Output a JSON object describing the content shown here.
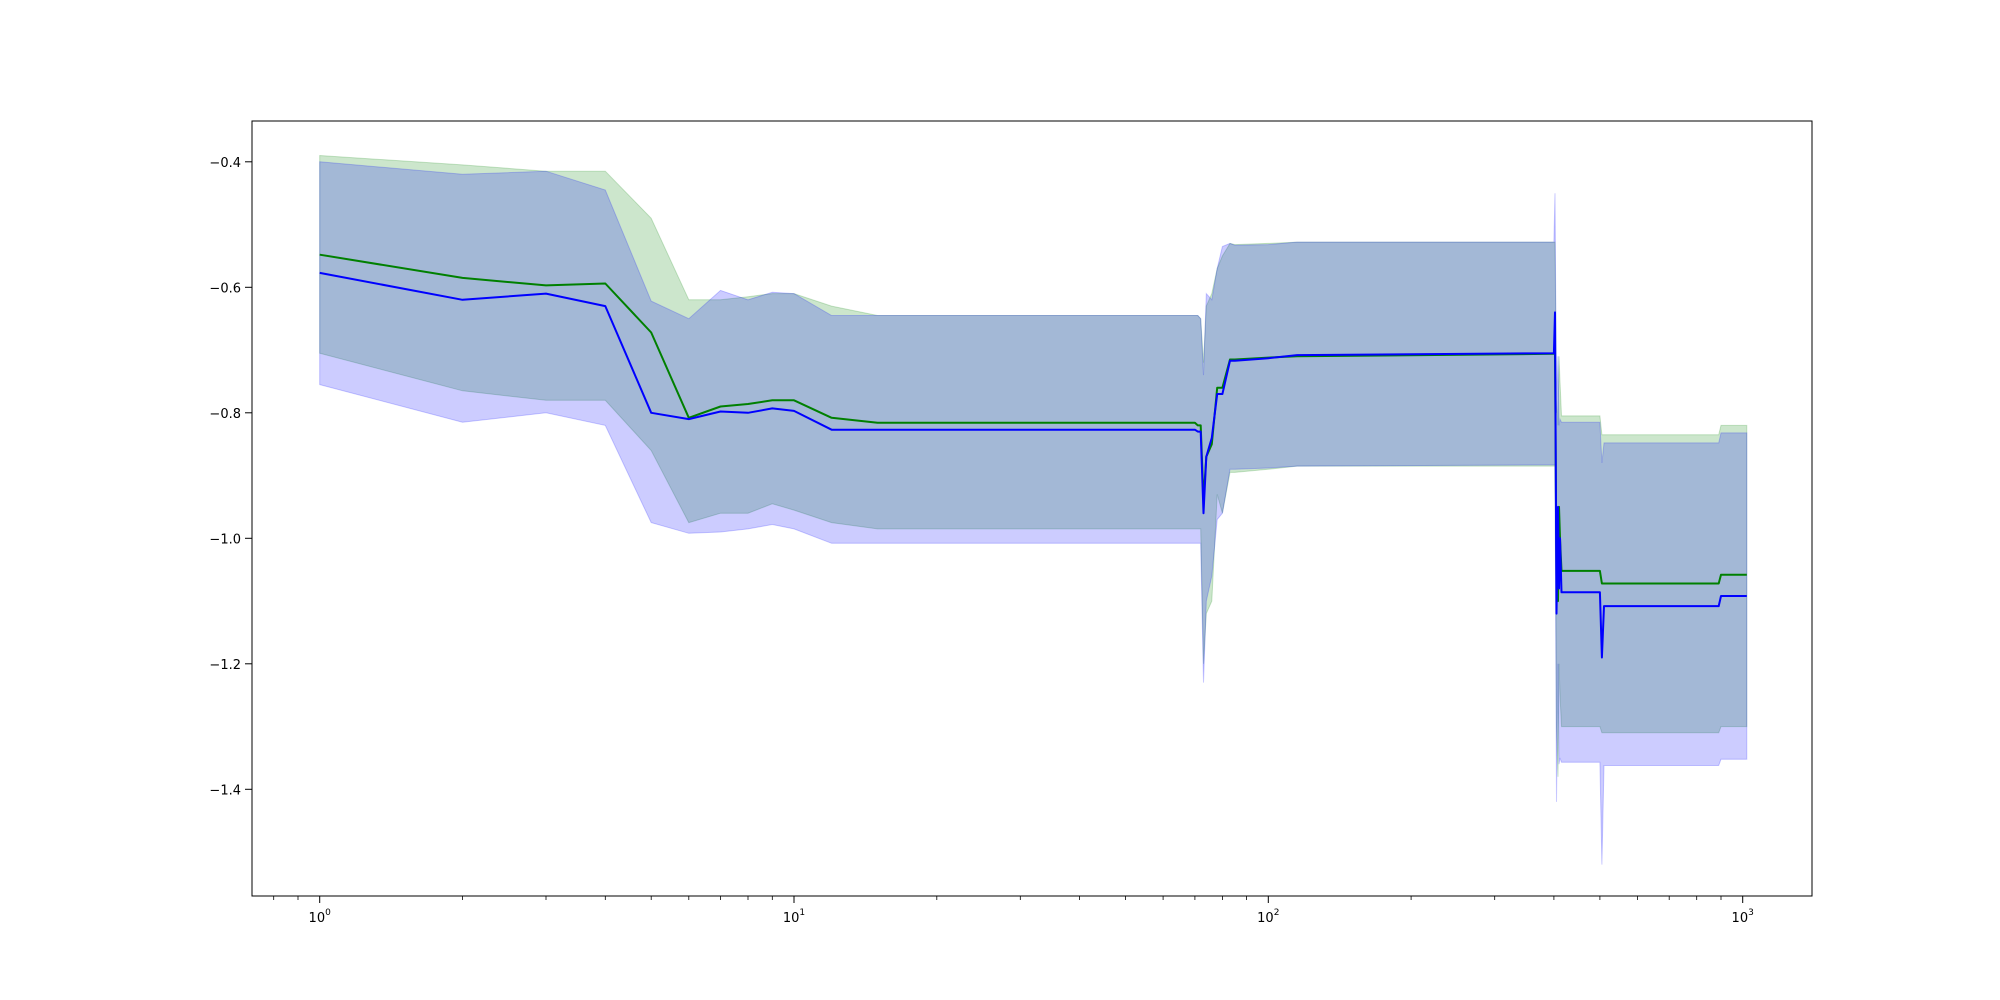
{
  "chart_data": {
    "type": "line",
    "title": "",
    "xlabel": "",
    "ylabel": "",
    "xscale": "log",
    "xlim": [
      0.72,
      1400
    ],
    "ylim": [
      -1.57,
      -0.335
    ],
    "grid": false,
    "x_ticks": [
      {
        "value": 1,
        "base": "10",
        "exp": "0"
      },
      {
        "value": 10,
        "base": "10",
        "exp": "1"
      },
      {
        "value": 100,
        "base": "10",
        "exp": "2"
      },
      {
        "value": 1000,
        "base": "10",
        "exp": "3"
      }
    ],
    "y_ticks": [
      {
        "value": -0.4,
        "label": "−0.4"
      },
      {
        "value": -0.6,
        "label": "−0.6"
      },
      {
        "value": -0.8,
        "label": "−0.8"
      },
      {
        "value": -1.0,
        "label": "−1.0"
      },
      {
        "value": -1.2,
        "label": "−1.2"
      },
      {
        "value": -1.4,
        "label": "−1.4"
      }
    ],
    "series": [
      {
        "color": "#008000",
        "band_color": "#008000",
        "x": [
          1,
          2,
          3,
          4,
          5,
          6,
          7,
          8,
          9,
          10,
          12,
          15,
          70,
          71,
          72,
          73,
          74,
          76,
          78,
          80,
          83,
          85,
          100,
          115,
          400,
          402,
          405,
          408,
          410,
          412,
          415,
          500,
          505,
          510,
          600,
          890,
          900,
          1020
        ],
        "y": [
          -0.548,
          -0.585,
          -0.597,
          -0.594,
          -0.672,
          -0.808,
          -0.79,
          -0.786,
          -0.78,
          -0.78,
          -0.808,
          -0.816,
          -0.816,
          -0.82,
          -0.82,
          -0.94,
          -0.87,
          -0.85,
          -0.76,
          -0.76,
          -0.715,
          -0.715,
          -0.712,
          -0.71,
          -0.706,
          -0.705,
          -1.06,
          -1.1,
          -0.95,
          -1.0,
          -1.052,
          -1.052,
          -1.072,
          -1.072,
          -1.072,
          -1.072,
          -1.058,
          -1.058
        ],
        "lower": [
          -0.705,
          -0.765,
          -0.78,
          -0.78,
          -0.86,
          -0.975,
          -0.96,
          -0.96,
          -0.945,
          -0.955,
          -0.975,
          -0.985,
          -0.985,
          -0.985,
          -0.985,
          -1.2,
          -1.12,
          -1.1,
          -0.93,
          -0.96,
          -0.895,
          -0.895,
          -0.89,
          -0.885,
          -0.885,
          -0.885,
          -1.3,
          -1.38,
          -1.2,
          -1.25,
          -1.3,
          -1.3,
          -1.31,
          -1.31,
          -1.31,
          -1.31,
          -1.3,
          -1.3
        ],
        "upper": [
          -0.39,
          -0.405,
          -0.415,
          -0.415,
          -0.49,
          -0.62,
          -0.62,
          -0.615,
          -0.61,
          -0.61,
          -0.63,
          -0.645,
          -0.645,
          -0.645,
          -0.65,
          -0.72,
          -0.63,
          -0.61,
          -0.57,
          -0.55,
          -0.53,
          -0.532,
          -0.53,
          -0.528,
          -0.528,
          -0.528,
          -0.78,
          -0.82,
          -0.71,
          -0.75,
          -0.805,
          -0.805,
          -0.835,
          -0.835,
          -0.835,
          -0.835,
          -0.82,
          -0.82
        ]
      },
      {
        "color": "#0000ff",
        "band_color": "#0000ff",
        "x": [
          1,
          2,
          3,
          4,
          5,
          6,
          7,
          8,
          9,
          10,
          12,
          15,
          70,
          71,
          72,
          73,
          74,
          76,
          78,
          80,
          83,
          85,
          100,
          115,
          400,
          402,
          405,
          408,
          410,
          412,
          415,
          500,
          505,
          510,
          600,
          890,
          900,
          1020
        ],
        "y": [
          -0.577,
          -0.62,
          -0.61,
          -0.63,
          -0.8,
          -0.81,
          -0.798,
          -0.8,
          -0.793,
          -0.797,
          -0.827,
          -0.827,
          -0.827,
          -0.83,
          -0.83,
          -0.96,
          -0.87,
          -0.84,
          -0.77,
          -0.77,
          -0.717,
          -0.717,
          -0.713,
          -0.708,
          -0.705,
          -0.64,
          -1.12,
          -0.95,
          -1.08,
          -1.0,
          -1.086,
          -1.086,
          -1.19,
          -1.108,
          -1.108,
          -1.108,
          -1.092,
          -1.092
        ],
        "lower": [
          -0.755,
          -0.815,
          -0.8,
          -0.82,
          -0.975,
          -0.992,
          -0.99,
          -0.985,
          -0.978,
          -0.985,
          -1.008,
          -1.008,
          -1.008,
          -1.008,
          -1.008,
          -1.23,
          -1.1,
          -1.06,
          -0.97,
          -0.96,
          -0.89,
          -0.89,
          -0.888,
          -0.885,
          -0.883,
          -0.883,
          -1.42,
          -1.2,
          -1.36,
          -1.35,
          -1.357,
          -1.357,
          -1.52,
          -1.362,
          -1.362,
          -1.362,
          -1.352,
          -1.352
        ],
        "upper": [
          -0.4,
          -0.42,
          -0.415,
          -0.445,
          -0.622,
          -0.65,
          -0.605,
          -0.62,
          -0.608,
          -0.61,
          -0.645,
          -0.645,
          -0.645,
          -0.645,
          -0.65,
          -0.74,
          -0.61,
          -0.62,
          -0.57,
          -0.535,
          -0.53,
          -0.533,
          -0.532,
          -0.528,
          -0.528,
          -0.45,
          -0.8,
          -0.71,
          -0.82,
          -0.81,
          -0.815,
          -0.815,
          -0.88,
          -0.848,
          -0.848,
          -0.848,
          -0.832,
          -0.832
        ]
      }
    ]
  }
}
